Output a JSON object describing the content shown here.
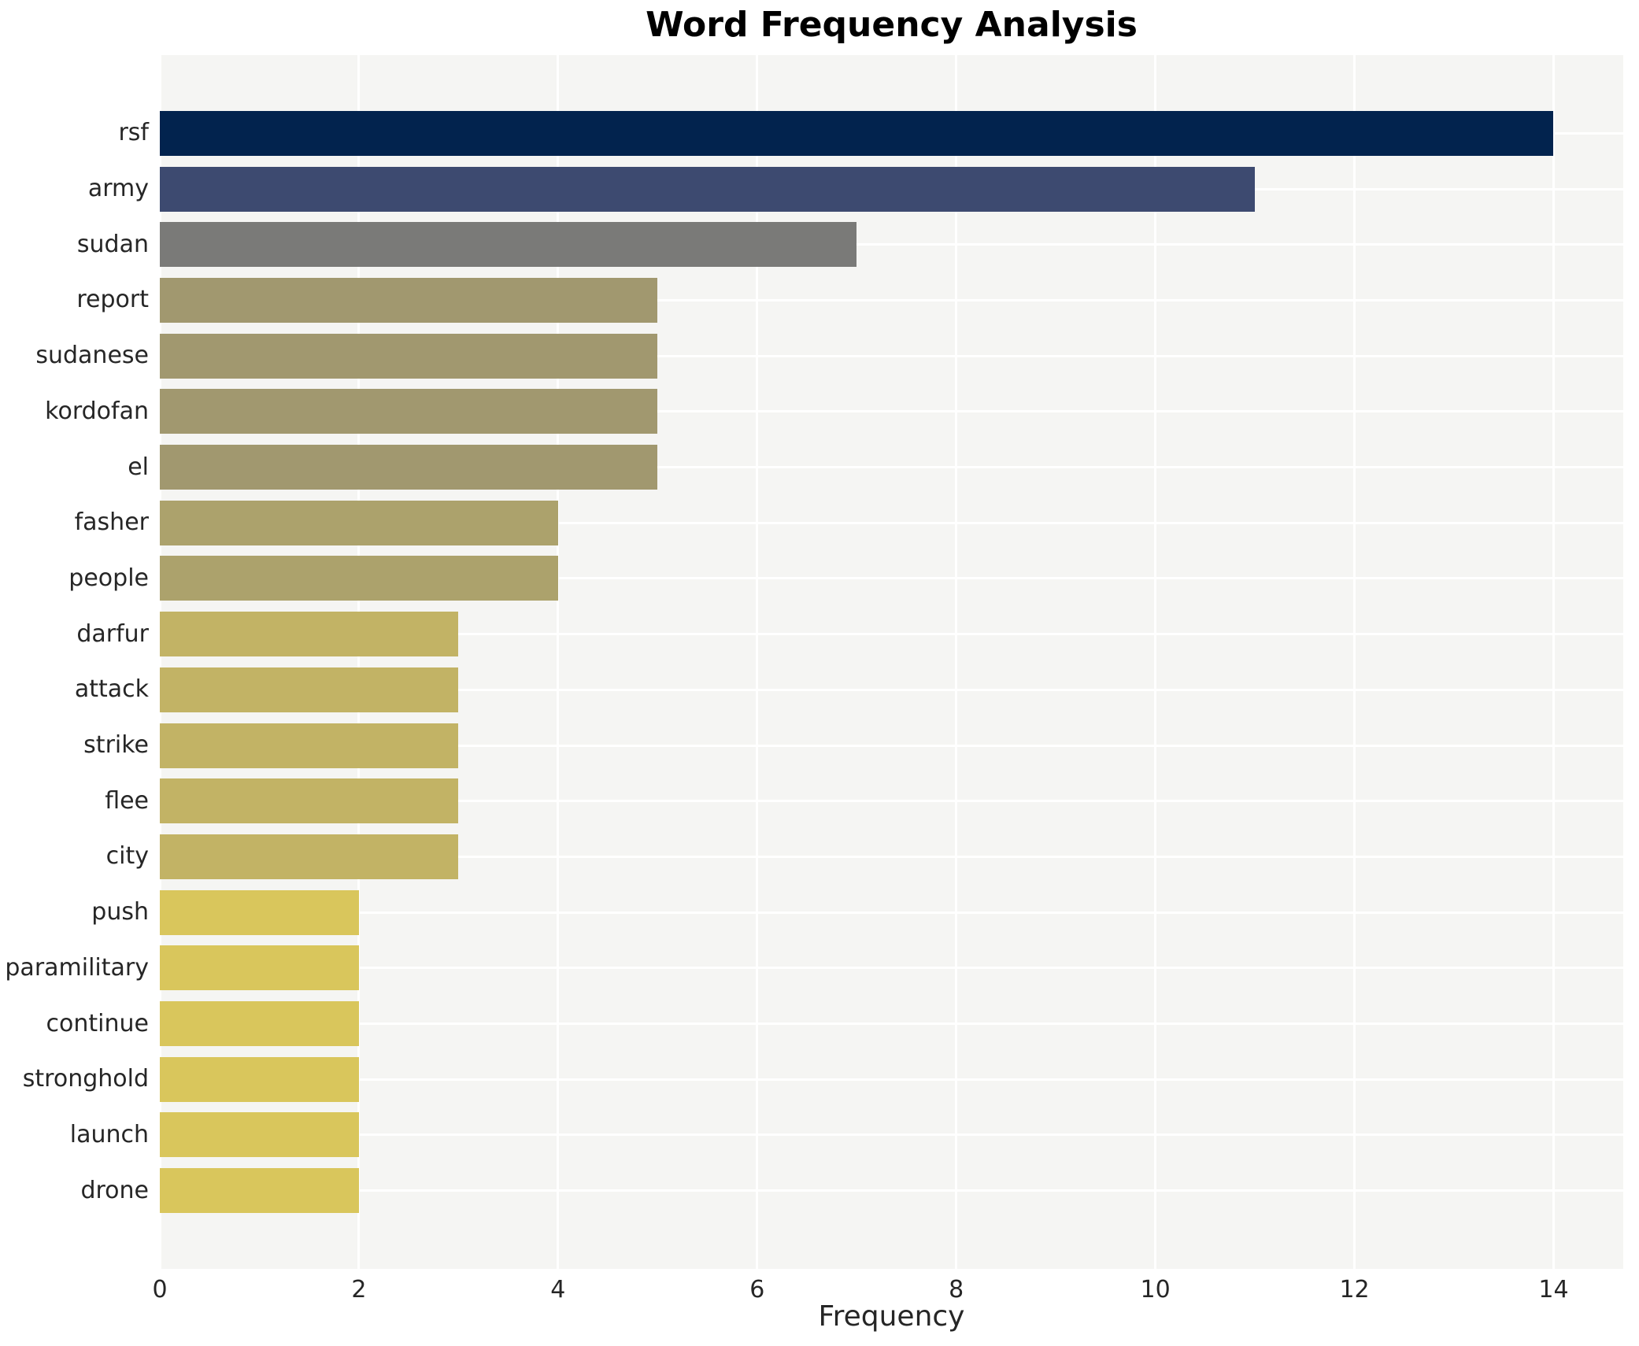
{
  "title": "Word Frequency Analysis",
  "x_axis": {
    "label": "Frequency",
    "tick_labels": [
      "0",
      "2",
      "4",
      "6",
      "8",
      "10",
      "12",
      "14"
    ]
  },
  "chart_data": {
    "type": "bar",
    "orientation": "horizontal",
    "title": "Word Frequency Analysis",
    "xlabel": "Frequency",
    "ylabel": "",
    "categories": [
      "rsf",
      "army",
      "sudan",
      "report",
      "sudanese",
      "kordofan",
      "el",
      "fasher",
      "people",
      "darfur",
      "attack",
      "strike",
      "flee",
      "city",
      "push",
      "paramilitary",
      "continue",
      "stronghold",
      "launch",
      "drone"
    ],
    "values": [
      14,
      11,
      7,
      5,
      5,
      5,
      5,
      4,
      4,
      3,
      3,
      3,
      3,
      3,
      2,
      2,
      2,
      2,
      2,
      2
    ],
    "bar_colors": [
      "#02234e",
      "#3d4a70",
      "#7a7a78",
      "#a1986f",
      "#a1986f",
      "#a1986f",
      "#a1986f",
      "#aca26c",
      "#aca26c",
      "#c2b365",
      "#c2b365",
      "#c2b365",
      "#c2b365",
      "#c2b365",
      "#d9c65c",
      "#d9c65c",
      "#d9c65c",
      "#d9c65c",
      "#d9c65c",
      "#d9c65c"
    ],
    "xlim": [
      0,
      14.7
    ],
    "xticks": [
      0,
      2,
      4,
      6,
      8,
      10,
      12,
      14
    ],
    "grid": true,
    "legend": "none",
    "plot_bg_color": "#f5f5f3",
    "grid_color": "#ffffff",
    "tick_text_color": "#262626",
    "title_color": "#000000"
  }
}
